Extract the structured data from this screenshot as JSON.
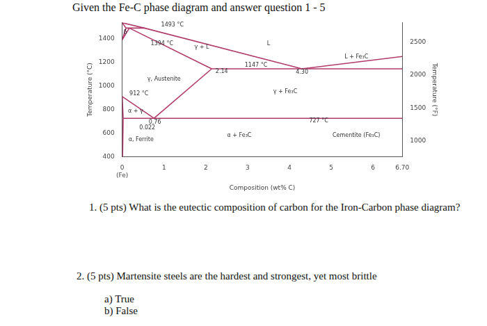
{
  "header": "Given the Fe-C phase diagram and answer question 1 - 5",
  "chart_data": {
    "type": "line",
    "xlabel": "Composition (wt% C)",
    "ylabel": "Temperature (°C)",
    "y2label": "Temperature (°F)",
    "color": "#b03a6a",
    "grid": false,
    "xlim": [
      0,
      6.7
    ],
    "xticks": [
      {
        "value": 0,
        "label": "0\n(Fe)"
      },
      1,
      2,
      3,
      4,
      5,
      6,
      {
        "value": 6.7,
        "label": "6.70"
      }
    ],
    "ylim": [
      400,
      1540
    ],
    "yticks": [
      400,
      600,
      800,
      1000,
      1200,
      1400
    ],
    "y2lim": [
      752,
      2804
    ],
    "y2ticks": [
      1000,
      1500,
      2000,
      2500
    ],
    "series": [
      {
        "x": [
          0,
          0.53,
          4.3,
          6.7
        ],
        "values": [
          1538,
          1493,
          1147,
          1252
        ]
      },
      {
        "x": [
          0,
          0.09
        ],
        "values": [
          1538,
          1493
        ]
      },
      {
        "x": [
          0.09,
          0.53
        ],
        "values": [
          1493,
          1493
        ]
      },
      {
        "x": [
          0.17,
          2.14
        ],
        "values": [
          1493,
          1147
        ]
      },
      {
        "x": [
          0,
          0.09
        ],
        "values": [
          1394,
          1493
        ]
      },
      {
        "x": [
          0,
          0.17
        ],
        "values": [
          1394,
          1493
        ]
      },
      {
        "x": [
          2.14,
          6.7
        ],
        "values": [
          1147,
          1147
        ]
      },
      {
        "x": [
          0.76,
          2.14
        ],
        "values": [
          727,
          1147
        ]
      },
      {
        "x": [
          0,
          0.76
        ],
        "values": [
          912,
          727
        ]
      },
      {
        "x": [
          0,
          0.022
        ],
        "values": [
          912,
          727
        ]
      },
      {
        "x": [
          0.022,
          6.7
        ],
        "values": [
          727,
          727
        ]
      },
      {
        "x": [
          0.022,
          0.008
        ],
        "values": [
          727,
          400
        ]
      }
    ],
    "annotations": [
      {
        "text": "1493 °C",
        "x": 1.2,
        "y": 1522
      },
      {
        "text": "1394 °C",
        "x": 0.95,
        "y": 1360
      },
      {
        "text": "912 °C",
        "x": 0.4,
        "y": 935
      },
      {
        "text": "1147 °C",
        "x": 3.2,
        "y": 1178
      },
      {
        "text": "727 °C",
        "x": 4.7,
        "y": 705
      },
      {
        "text": "2.14",
        "x": 2.38,
        "y": 1125
      },
      {
        "text": "4.30",
        "x": 4.3,
        "y": 1120
      },
      {
        "text": "0.76",
        "x": 0.78,
        "y": 695
      },
      {
        "text": "0.022",
        "x": 0.6,
        "y": 645
      },
      {
        "text": "L",
        "x": 3.5,
        "y": 1360
      },
      {
        "text": "γ + L",
        "x": 1.9,
        "y": 1330
      },
      {
        "text": "γ, Austenite",
        "x": 1.0,
        "y": 1060
      },
      {
        "text": "γ + Fe₃C",
        "x": 3.9,
        "y": 950
      },
      {
        "text": "L + Fe₃C",
        "x": 5.6,
        "y": 1245
      },
      {
        "text": "α + Fe₃C",
        "x": 2.8,
        "y": 580
      },
      {
        "text": "Cementite (Fe₃C)",
        "x": 5.6,
        "y": 580
      },
      {
        "text": "α, Ferrite",
        "x": 0.45,
        "y": 545
      },
      {
        "text": "α + γ",
        "x": 0.32,
        "y": 790
      },
      {
        "text": "δ",
        "x": 0.07,
        "y": 1455
      }
    ]
  },
  "questions": [
    {
      "number": "1.",
      "text": "(5 pts) What is the eutectic composition of carbon for the Iron-Carbon phase diagram?"
    },
    {
      "number": "2.",
      "text": "(5 pts) Martensite steels are the hardest and strongest, yet most brittle",
      "options": [
        "a)  True",
        "b)  False"
      ]
    }
  ]
}
